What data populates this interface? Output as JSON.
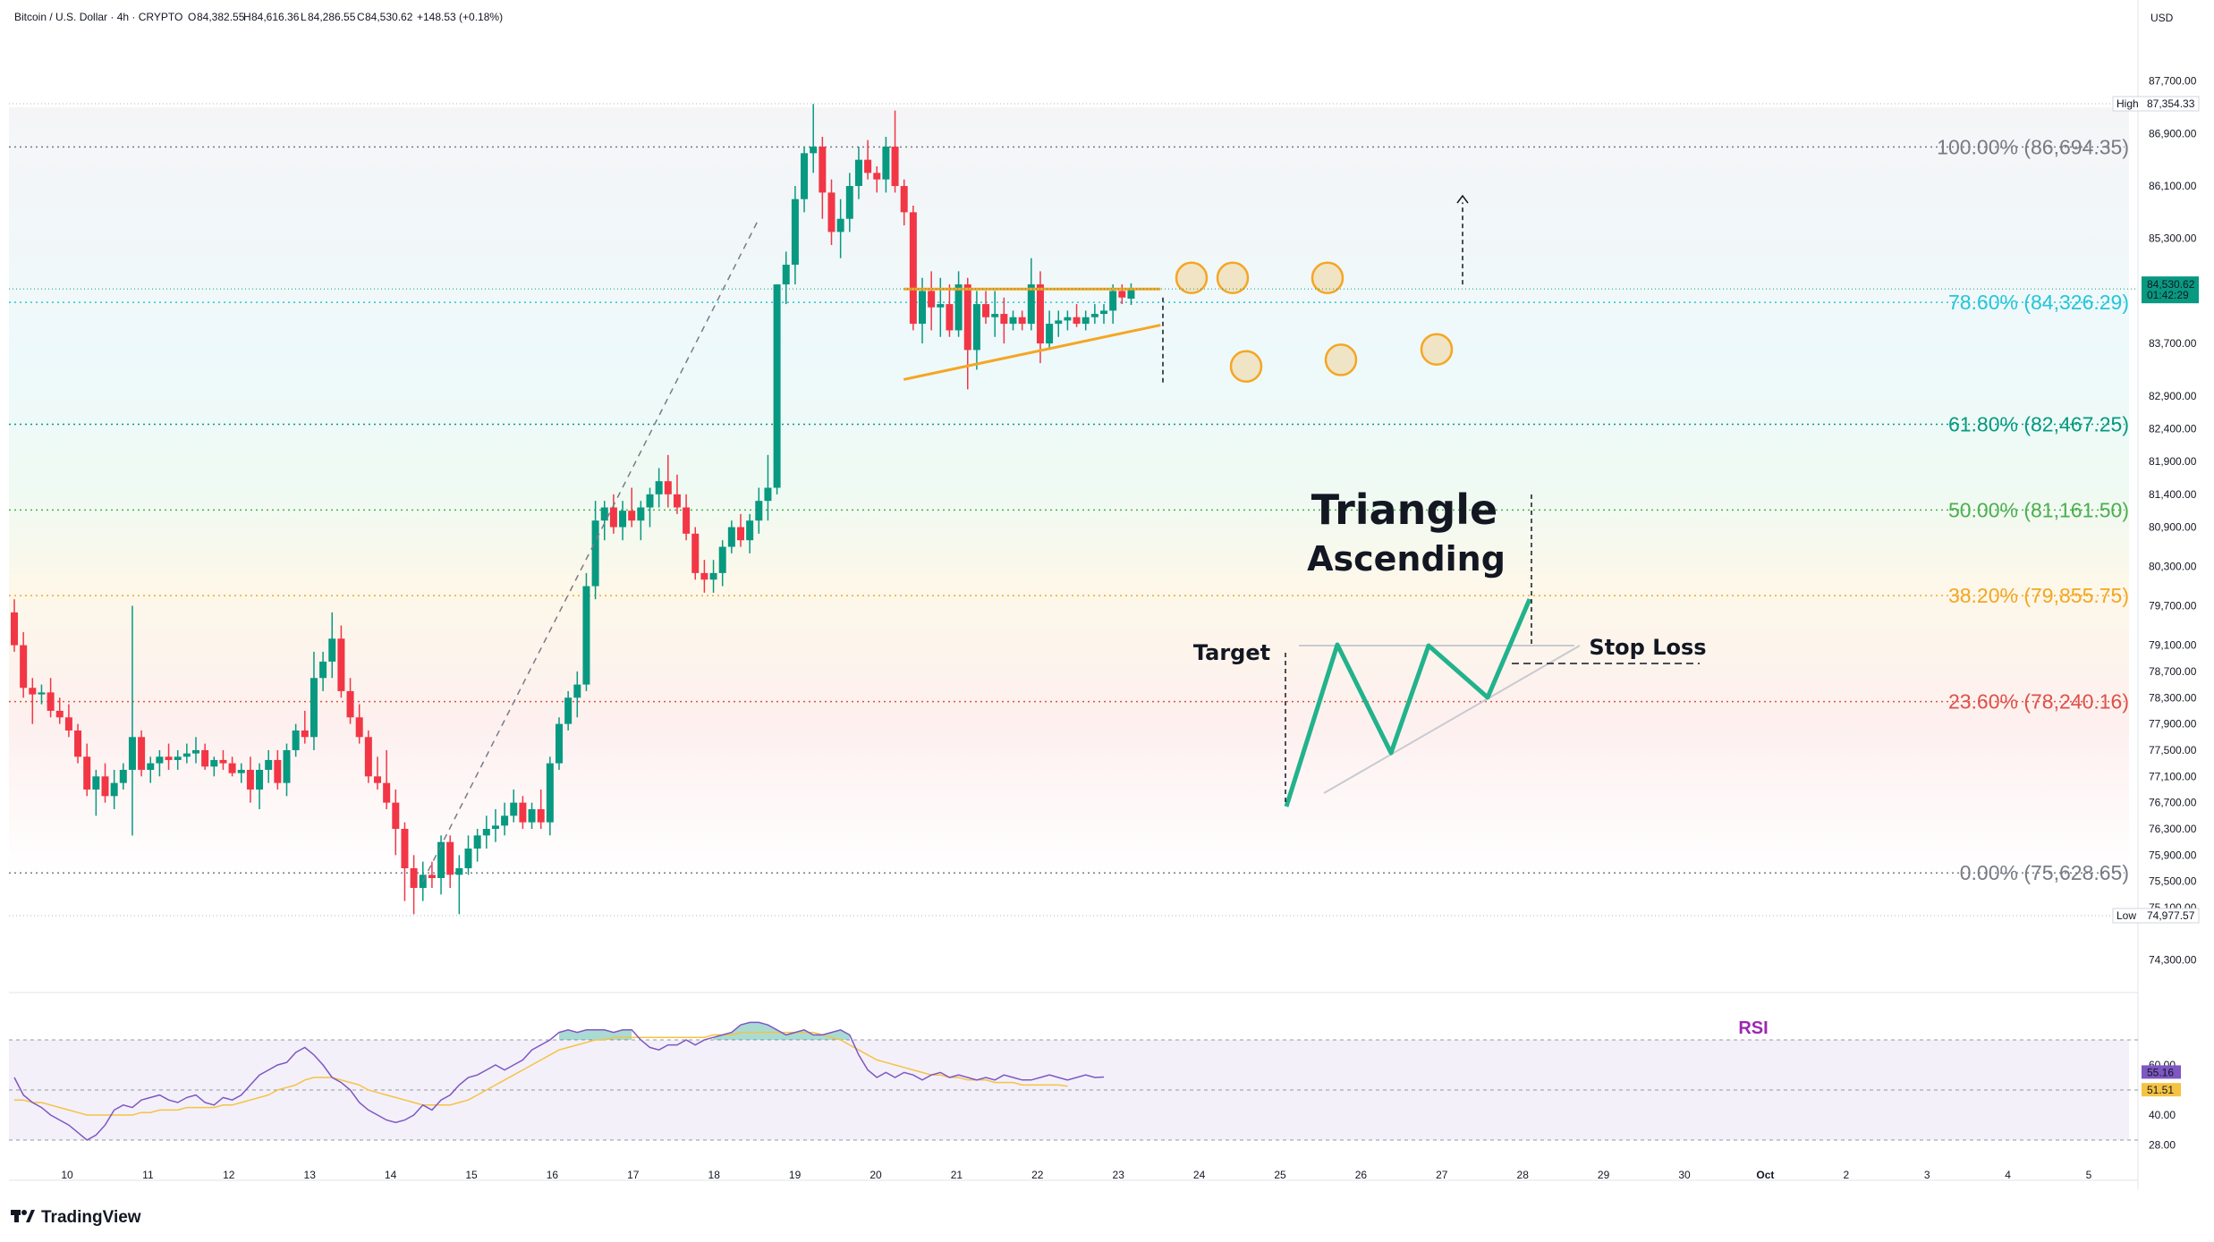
{
  "header": {
    "symbol": "Bitcoin / U.S. Dollar · 4h · CRYPTO",
    "open_label": "O",
    "open": "84,382.55",
    "high_label": "H",
    "high": "84,616.36",
    "low_label": "L",
    "low": "84,286.55",
    "close_label": "C",
    "close": "84,530.62",
    "change": "+148.53 (+0.18%)",
    "currency": "USD"
  },
  "branding": {
    "logo_text": "TradingView"
  },
  "colors": {
    "up": "#089981",
    "down": "#f23645",
    "triangle": "#f5a623",
    "pattern": "#22b28c",
    "rsi": "#7e57c2",
    "rsi_ma": "#f5c343"
  },
  "chart_data": {
    "type": "candlestick",
    "timeframe": "4h",
    "price_axis": {
      "ticks": [
        "87,700.00",
        "86,900.00",
        "86,100.00",
        "85,300.00",
        "84,500.00",
        "83,700.00",
        "82,900.00",
        "82,400.00",
        "81,900.00",
        "81,400.00",
        "80,900.00",
        "80,300.00",
        "79,700.00",
        "79,100.00",
        "78,700.00",
        "78,300.00",
        "77,900.00",
        "77,500.00",
        "77,100.00",
        "76,700.00",
        "76,300.00",
        "75,900.00",
        "75,500.00",
        "75,100.00",
        "74,300.00"
      ],
      "tick_values": [
        87700,
        86900,
        86100,
        85300,
        84500,
        83700,
        82900,
        82400,
        81900,
        81400,
        80900,
        80300,
        79700,
        79100,
        78700,
        78300,
        77900,
        77500,
        77100,
        76700,
        76300,
        75900,
        75500,
        75100,
        74300
      ]
    },
    "date_axis": [
      "10",
      "11",
      "12",
      "13",
      "14",
      "15",
      "16",
      "17",
      "18",
      "19",
      "20",
      "21",
      "22",
      "23",
      "24",
      "25",
      "26",
      "27",
      "28",
      "29",
      "30",
      "Oct",
      "2",
      "3",
      "4",
      "5"
    ],
    "high_marker": {
      "label": "High",
      "value": "87,354.33",
      "price": 87354.33
    },
    "low_marker": {
      "label": "Low",
      "value": "74,977.57",
      "price": 74977.57
    },
    "last_price": {
      "value": "84,530.62",
      "countdown": "01:42:29",
      "price": 84530.62
    },
    "fibonacci": [
      {
        "label": "100.00% (86,694.35)",
        "price": 86694.35,
        "color": "#787b86"
      },
      {
        "label": "78.60% (84,326.29)",
        "price": 84326.29,
        "color": "#26c6da"
      },
      {
        "label": "61.80% (82,467.25)",
        "price": 82467.25,
        "color": "#089981"
      },
      {
        "label": "50.00% (81,161.50)",
        "price": 81161.5,
        "color": "#4caf50"
      },
      {
        "label": "38.20% (79,855.75)",
        "price": 79855.75,
        "color": "#f5a623"
      },
      {
        "label": "23.60% (78,240.16)",
        "price": 78240.16,
        "color": "#e0504a"
      },
      {
        "label": "0.00% (75,628.65)",
        "price": 75628.65,
        "color": "#787b86"
      }
    ],
    "candles": [
      [
        79600,
        79800,
        79000,
        79100
      ],
      [
        79100,
        79300,
        78300,
        78450
      ],
      [
        78450,
        78600,
        77900,
        78350
      ],
      [
        78350,
        78500,
        78200,
        78380
      ],
      [
        78380,
        78600,
        78000,
        78100
      ],
      [
        78100,
        78300,
        77900,
        78000
      ],
      [
        78000,
        78200,
        77700,
        77800
      ],
      [
        77800,
        77900,
        77300,
        77400
      ],
      [
        77400,
        77600,
        76800,
        76900
      ],
      [
        76900,
        77200,
        76500,
        77100
      ],
      [
        77100,
        77300,
        76700,
        76800
      ],
      [
        76800,
        77200,
        76600,
        77000
      ],
      [
        77000,
        77300,
        76900,
        77200
      ],
      [
        77200,
        79700,
        76200,
        77700
      ],
      [
        77700,
        77800,
        77100,
        77200
      ],
      [
        77200,
        77400,
        77000,
        77300
      ],
      [
        77300,
        77500,
        77100,
        77400
      ],
      [
        77400,
        77600,
        77200,
        77350
      ],
      [
        77350,
        77500,
        77200,
        77400
      ],
      [
        77400,
        77600,
        77300,
        77450
      ],
      [
        77450,
        77700,
        77300,
        77500
      ],
      [
        77500,
        77600,
        77200,
        77250
      ],
      [
        77250,
        77400,
        77100,
        77350
      ],
      [
        77350,
        77500,
        77200,
        77300
      ],
      [
        77300,
        77400,
        77100,
        77150
      ],
      [
        77150,
        77300,
        77000,
        77200
      ],
      [
        77200,
        77400,
        76700,
        76900
      ],
      [
        76900,
        77300,
        76600,
        77200
      ],
      [
        77200,
        77500,
        77000,
        77350
      ],
      [
        77350,
        77500,
        76900,
        77000
      ],
      [
        77000,
        77600,
        76800,
        77500
      ],
      [
        77500,
        77900,
        77400,
        77800
      ],
      [
        77800,
        78100,
        77600,
        77700
      ],
      [
        77700,
        79000,
        77500,
        78600
      ],
      [
        78600,
        79000,
        78400,
        78850
      ],
      [
        78850,
        79600,
        78600,
        79200
      ],
      [
        79200,
        79400,
        78300,
        78400
      ],
      [
        78400,
        78600,
        77900,
        78000
      ],
      [
        78000,
        78200,
        77600,
        77700
      ],
      [
        77700,
        77800,
        77000,
        77100
      ],
      [
        77100,
        77400,
        76900,
        77000
      ],
      [
        77000,
        77500,
        76600,
        76700
      ],
      [
        76700,
        76900,
        75900,
        76300
      ],
      [
        76300,
        76400,
        75200,
        75700
      ],
      [
        75700,
        75900,
        75000,
        75400
      ],
      [
        75400,
        75800,
        75200,
        75600
      ],
      [
        75600,
        75800,
        75400,
        75550
      ],
      [
        75550,
        76200,
        75300,
        76100
      ],
      [
        76100,
        76200,
        75400,
        75600
      ],
      [
        75600,
        75900,
        75000,
        75700
      ],
      [
        75700,
        76200,
        75600,
        76000
      ],
      [
        76000,
        76300,
        75800,
        76200
      ],
      [
        76200,
        76500,
        76000,
        76300
      ],
      [
        76300,
        76600,
        76100,
        76350
      ],
      [
        76350,
        76700,
        76200,
        76500
      ],
      [
        76500,
        76900,
        76400,
        76700
      ],
      [
        76700,
        76800,
        76300,
        76400
      ],
      [
        76400,
        76700,
        76300,
        76600
      ],
      [
        76600,
        76900,
        76300,
        76400
      ],
      [
        76400,
        77400,
        76200,
        77300
      ],
      [
        77300,
        78000,
        77200,
        77900
      ],
      [
        77900,
        78400,
        77800,
        78300
      ],
      [
        78300,
        78700,
        78000,
        78500
      ],
      [
        78500,
        80200,
        78400,
        80000
      ],
      [
        80000,
        81300,
        79800,
        81000
      ],
      [
        81000,
        81300,
        80700,
        81200
      ],
      [
        81200,
        81400,
        80800,
        80900
      ],
      [
        80900,
        81300,
        80700,
        81150
      ],
      [
        81150,
        81500,
        80900,
        81000
      ],
      [
        81000,
        81300,
        80700,
        81200
      ],
      [
        81200,
        81500,
        80900,
        81400
      ],
      [
        81400,
        81800,
        81200,
        81600
      ],
      [
        81600,
        82000,
        81200,
        81400
      ],
      [
        81400,
        81700,
        81100,
        81200
      ],
      [
        81200,
        81400,
        80700,
        80800
      ],
      [
        80800,
        80900,
        80100,
        80200
      ],
      [
        80200,
        80400,
        79900,
        80100
      ],
      [
        80100,
        80400,
        79900,
        80200
      ],
      [
        80200,
        80700,
        80000,
        80600
      ],
      [
        80600,
        81000,
        80500,
        80900
      ],
      [
        80900,
        81100,
        80600,
        80700
      ],
      [
        80700,
        81100,
        80500,
        81000
      ],
      [
        81000,
        81500,
        80800,
        81300
      ],
      [
        81300,
        82000,
        81000,
        81500
      ],
      [
        81500,
        84600,
        81400,
        84600
      ],
      [
        84600,
        85100,
        84300,
        84900
      ],
      [
        84900,
        86100,
        84600,
        85900
      ],
      [
        85900,
        86700,
        85700,
        86600
      ],
      [
        86600,
        87350,
        86300,
        86700
      ],
      [
        86700,
        86850,
        85600,
        86000
      ],
      [
        86000,
        86200,
        85200,
        85400
      ],
      [
        85400,
        85900,
        85000,
        85600
      ],
      [
        85600,
        86300,
        85400,
        86100
      ],
      [
        86100,
        86700,
        85900,
        86500
      ],
      [
        86500,
        86800,
        86200,
        86300
      ],
      [
        86300,
        86400,
        86000,
        86200
      ],
      [
        86200,
        86850,
        86000,
        86700
      ],
      [
        86700,
        87250,
        86000,
        86100
      ],
      [
        86100,
        86200,
        85500,
        85700
      ],
      [
        85700,
        85800,
        83900,
        84000
      ],
      [
        84000,
        84700,
        83700,
        84500
      ],
      [
        84500,
        84800,
        83900,
        84250
      ],
      [
        84250,
        84700,
        83800,
        84300
      ],
      [
        84300,
        84600,
        83800,
        83900
      ],
      [
        83900,
        84800,
        83800,
        84600
      ],
      [
        84600,
        84700,
        83000,
        83600
      ],
      [
        83600,
        84500,
        83300,
        84300
      ],
      [
        84300,
        84500,
        84000,
        84100
      ],
      [
        84100,
        84500,
        83800,
        84150
      ],
      [
        84150,
        84400,
        83700,
        84000
      ],
      [
        84000,
        84200,
        83900,
        84100
      ],
      [
        84100,
        84200,
        83900,
        84000
      ],
      [
        84000,
        85000,
        83900,
        84600
      ],
      [
        84600,
        84800,
        83400,
        83700
      ],
      [
        83700,
        84200,
        83600,
        84000
      ],
      [
        84000,
        84200,
        83800,
        84050
      ],
      [
        84050,
        84200,
        83900,
        84100
      ],
      [
        84100,
        84300,
        83950,
        84000
      ],
      [
        84000,
        84200,
        83900,
        84100
      ],
      [
        84100,
        84300,
        84000,
        84150
      ],
      [
        84150,
        84300,
        84000,
        84200
      ],
      [
        84200,
        84600,
        84000,
        84500
      ],
      [
        84500,
        84600,
        84300,
        84400
      ],
      [
        84382.55,
        84616.36,
        84286.55,
        84530.62
      ]
    ],
    "triangle_lines": [
      {
        "name": "resistance",
        "from": [
          65,
          84530
        ],
        "to": [
          88,
          84530
        ]
      },
      {
        "name": "support",
        "from": [
          65,
          83150
        ],
        "to": [
          88,
          83980
        ]
      }
    ],
    "annotations": {
      "title_line1": "Triangle",
      "title_line2": "Ascending",
      "target": "Target",
      "stop_loss": "Stop Loss",
      "rsi_label": "RSI"
    },
    "rsi": {
      "ticks": [
        "60.00",
        "40.00",
        "28.00"
      ],
      "current": "55.16",
      "ma_current": "51.51",
      "values": [
        55,
        48,
        45,
        43,
        40,
        38,
        36,
        33,
        30,
        32,
        36,
        42,
        44,
        43,
        46,
        47,
        48,
        46,
        45,
        47,
        48,
        45,
        44,
        47,
        46,
        48,
        52,
        56,
        58,
        60,
        61,
        65,
        67,
        64,
        60,
        55,
        53,
        50,
        45,
        42,
        40,
        38,
        37,
        38,
        40,
        44,
        42,
        46,
        48,
        52,
        55,
        56,
        58,
        60,
        58,
        60,
        62,
        66,
        68,
        70,
        73,
        74,
        73,
        74,
        74,
        74,
        73,
        74,
        74,
        70,
        67,
        66,
        68,
        68,
        70,
        68,
        70,
        71,
        72,
        73,
        76,
        77,
        77,
        76,
        74,
        72,
        73,
        74,
        72,
        72,
        73,
        74,
        72,
        64,
        58,
        55,
        57,
        55,
        57,
        56,
        54,
        56,
        57,
        55,
        56,
        55,
        54,
        55,
        54,
        56,
        55,
        54,
        54,
        55,
        56,
        55,
        54,
        55,
        56,
        55,
        55.16
      ],
      "ma": [
        46,
        46,
        45,
        45,
        44,
        43,
        42,
        41,
        40,
        40,
        40,
        40,
        40,
        40,
        41,
        41,
        42,
        42,
        42,
        43,
        43,
        43,
        43,
        44,
        44,
        45,
        46,
        47,
        48,
        50,
        51,
        52,
        54,
        55,
        55,
        55,
        54,
        53,
        52,
        50,
        49,
        48,
        47,
        46,
        45,
        44,
        44,
        44,
        44,
        45,
        46,
        48,
        50,
        52,
        54,
        56,
        58,
        60,
        62,
        64,
        66,
        67,
        68,
        69,
        70,
        70,
        71,
        71,
        71,
        71,
        71,
        71,
        71,
        71,
        71,
        71,
        71,
        72,
        72,
        72,
        73,
        73,
        73,
        73,
        73,
        73,
        73,
        73,
        73,
        72,
        71,
        70,
        68,
        66,
        64,
        62,
        61,
        60,
        59,
        58,
        57,
        56,
        56,
        55,
        55,
        54,
        54,
        54,
        53,
        53,
        53,
        52,
        52,
        52,
        52,
        52,
        51.51
      ]
    }
  }
}
